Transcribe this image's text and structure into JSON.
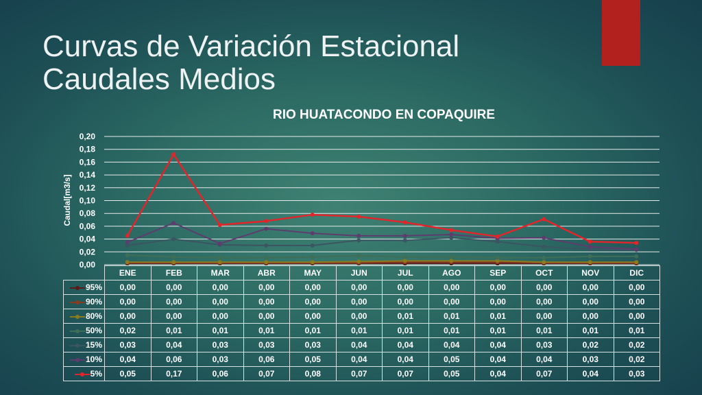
{
  "slide": {
    "title_line1": "Curvas de Variación Estacional",
    "title_line2": "Caudales Medios"
  },
  "chart_data": {
    "type": "line",
    "title": "RIO HUATACONDO EN COPAQUIRE",
    "xlabel": "",
    "ylabel": "Caudal[m3/s]",
    "ylim": [
      0,
      0.2
    ],
    "yticks": [
      "0,00",
      "0,02",
      "0,04",
      "0,06",
      "0,08",
      "0,10",
      "0,12",
      "0,14",
      "0,16",
      "0,18",
      "0,20"
    ],
    "grid": true,
    "legend": "data-table",
    "categories": [
      "ENE",
      "FEB",
      "MAR",
      "ABR",
      "MAY",
      "JUN",
      "JUL",
      "AGO",
      "SEP",
      "OCT",
      "NOV",
      "DIC"
    ],
    "series": [
      {
        "name": "95%",
        "color": "#5a1a1a",
        "values": [
          0.002,
          0.002,
          0.002,
          0.002,
          0.002,
          0.002,
          0.002,
          0.002,
          0.002,
          0.002,
          0.002,
          0.002
        ],
        "labels": [
          "0,00",
          "0,00",
          "0,00",
          "0,00",
          "0,00",
          "0,00",
          "0,00",
          "0,00",
          "0,00",
          "0,00",
          "0,00",
          "0,00"
        ]
      },
      {
        "name": "90%",
        "color": "#8a3a1e",
        "values": [
          0.003,
          0.003,
          0.003,
          0.003,
          0.003,
          0.003,
          0.004,
          0.004,
          0.004,
          0.003,
          0.003,
          0.003
        ],
        "labels": [
          "0,00",
          "0,00",
          "0,00",
          "0,00",
          "0,00",
          "0,00",
          "0,00",
          "0,00",
          "0,00",
          "0,00",
          "0,00",
          "0,00"
        ]
      },
      {
        "name": "80%",
        "color": "#8c7a1e",
        "values": [
          0.004,
          0.004,
          0.004,
          0.004,
          0.004,
          0.005,
          0.006,
          0.006,
          0.006,
          0.004,
          0.004,
          0.004
        ],
        "labels": [
          "0,00",
          "0,00",
          "0,00",
          "0,00",
          "0,00",
          "0,00",
          "0,01",
          "0,01",
          "0,01",
          "0,00",
          "0,00",
          "0,00"
        ]
      },
      {
        "name": "50%",
        "color": "#3f6e57",
        "values": [
          0.015,
          0.012,
          0.011,
          0.011,
          0.012,
          0.014,
          0.012,
          0.012,
          0.011,
          0.011,
          0.013,
          0.013
        ],
        "labels": [
          "0,02",
          "0,01",
          "0,01",
          "0,01",
          "0,01",
          "0,01",
          "0,01",
          "0,01",
          "0,01",
          "0,01",
          "0,01",
          "0,01"
        ]
      },
      {
        "name": "15%",
        "color": "#3b5563",
        "values": [
          0.03,
          0.04,
          0.031,
          0.03,
          0.03,
          0.038,
          0.038,
          0.042,
          0.036,
          0.028,
          0.024,
          0.023
        ],
        "labels": [
          "0,03",
          "0,04",
          "0,03",
          "0,03",
          "0,03",
          "0,04",
          "0,04",
          "0,04",
          "0,04",
          "0,03",
          "0,02",
          "0,02"
        ]
      },
      {
        "name": "10%",
        "color": "#5e3c6e",
        "values": [
          0.035,
          0.065,
          0.033,
          0.056,
          0.049,
          0.045,
          0.045,
          0.047,
          0.041,
          0.042,
          0.028,
          0.024
        ],
        "labels": [
          "0,04",
          "0,06",
          "0,03",
          "0,06",
          "0,05",
          "0,04",
          "0,04",
          "0,05",
          "0,04",
          "0,04",
          "0,03",
          "0,02"
        ]
      },
      {
        "name": "5%",
        "color": "#e0262a",
        "values": [
          0.045,
          0.172,
          0.062,
          0.068,
          0.078,
          0.075,
          0.066,
          0.054,
          0.044,
          0.071,
          0.036,
          0.034
        ],
        "labels": [
          "0,05",
          "0,17",
          "0,06",
          "0,07",
          "0,08",
          "0,07",
          "0,07",
          "0,05",
          "0,04",
          "0,07",
          "0,04",
          "0,03"
        ]
      }
    ]
  }
}
